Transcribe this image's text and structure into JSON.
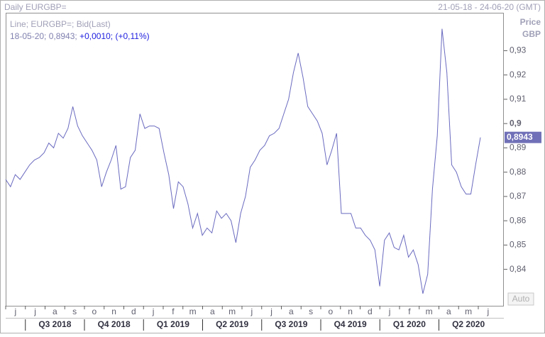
{
  "chart_data": {
    "type": "line",
    "title": "Daily EURGBP=",
    "date_range": "21-05-18 - 24-06-20 (GMT)",
    "legend_line1": "Line; EURGBP=; Bid(Last)",
    "legend_info": "18-05-20; 0,8943;",
    "legend_change": "+0,0010; (+0,11%)",
    "axis_title": "Price",
    "axis_unit": "GBP",
    "auto_button": "Auto",
    "last_value_label": "0,8943",
    "color": "#6a6ac0",
    "ylim": [
      0.825,
      0.9456
    ],
    "yticks": [
      {
        "value": 0.84,
        "label": "0,84"
      },
      {
        "value": 0.85,
        "label": "0,85"
      },
      {
        "value": 0.86,
        "label": "0,86"
      },
      {
        "value": 0.87,
        "label": "0,87"
      },
      {
        "value": 0.88,
        "label": "0,88"
      },
      {
        "value": 0.89,
        "label": "0,89"
      },
      {
        "value": 0.9,
        "label": "0,9",
        "bold": true
      },
      {
        "value": 0.91,
        "label": "0,91"
      },
      {
        "value": 0.92,
        "label": "0,92"
      },
      {
        "value": 0.93,
        "label": "0,93"
      }
    ],
    "months": [
      "j",
      "j",
      "a",
      "s",
      "o",
      "n",
      "d",
      "j",
      "f",
      "m",
      "a",
      "m",
      "j",
      "j",
      "a",
      "s",
      "o",
      "n",
      "d",
      "j",
      "f",
      "m",
      "a",
      "m",
      "j"
    ],
    "quarters": [
      "Q3 2018",
      "Q4 2018",
      "Q1 2019",
      "Q2 2019",
      "Q3 2019",
      "Q4 2019",
      "Q1 2020",
      "Q2 2020"
    ],
    "values": [
      0.877,
      0.874,
      0.879,
      0.877,
      0.88,
      0.883,
      0.885,
      0.886,
      0.888,
      0.892,
      0.89,
      0.896,
      0.894,
      0.898,
      0.907,
      0.899,
      0.895,
      0.892,
      0.889,
      0.885,
      0.874,
      0.88,
      0.885,
      0.891,
      0.873,
      0.874,
      0.886,
      0.889,
      0.904,
      0.898,
      0.899,
      0.899,
      0.898,
      0.888,
      0.879,
      0.865,
      0.876,
      0.874,
      0.867,
      0.857,
      0.863,
      0.854,
      0.857,
      0.855,
      0.864,
      0.861,
      0.863,
      0.86,
      0.851,
      0.863,
      0.87,
      0.882,
      0.885,
      0.889,
      0.891,
      0.895,
      0.896,
      0.898,
      0.904,
      0.91,
      0.921,
      0.929,
      0.919,
      0.907,
      0.904,
      0.901,
      0.896,
      0.883,
      0.889,
      0.896,
      0.863,
      0.863,
      0.863,
      0.857,
      0.857,
      0.854,
      0.852,
      0.848,
      0.833,
      0.852,
      0.855,
      0.849,
      0.848,
      0.854,
      0.845,
      0.848,
      0.842,
      0.83,
      0.838,
      0.873,
      0.895,
      0.939,
      0.921,
      0.883,
      0.88,
      0.874,
      0.871,
      0.871,
      0.883,
      0.8943
    ]
  }
}
